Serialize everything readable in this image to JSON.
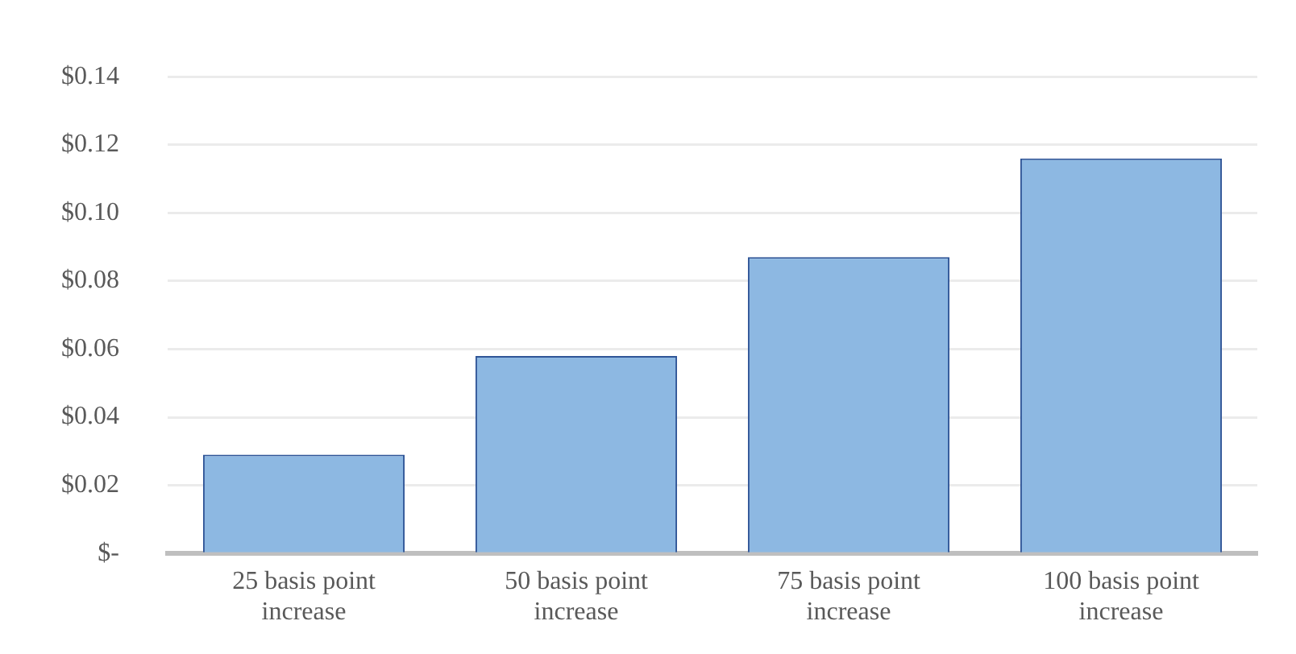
{
  "chart_data": {
    "type": "bar",
    "categories": [
      "25 basis point increase",
      "50 basis point increase",
      "75 basis point increase",
      "100 basis point increase"
    ],
    "values": [
      0.029,
      0.058,
      0.087,
      0.116
    ],
    "color": "#8db8e2",
    "ylim": [
      0,
      0.14
    ],
    "yticks": [
      {
        "value": 0,
        "label": "$-"
      },
      {
        "value": 0.02,
        "label": "$0.02"
      },
      {
        "value": 0.04,
        "label": "$0.04"
      },
      {
        "value": 0.06,
        "label": "$0.06"
      },
      {
        "value": 0.08,
        "label": "$0.08"
      },
      {
        "value": 0.1,
        "label": "$0.10"
      },
      {
        "value": 0.12,
        "label": "$0.12"
      },
      {
        "value": 0.14,
        "label": "$0.14"
      }
    ],
    "grid": "y"
  }
}
